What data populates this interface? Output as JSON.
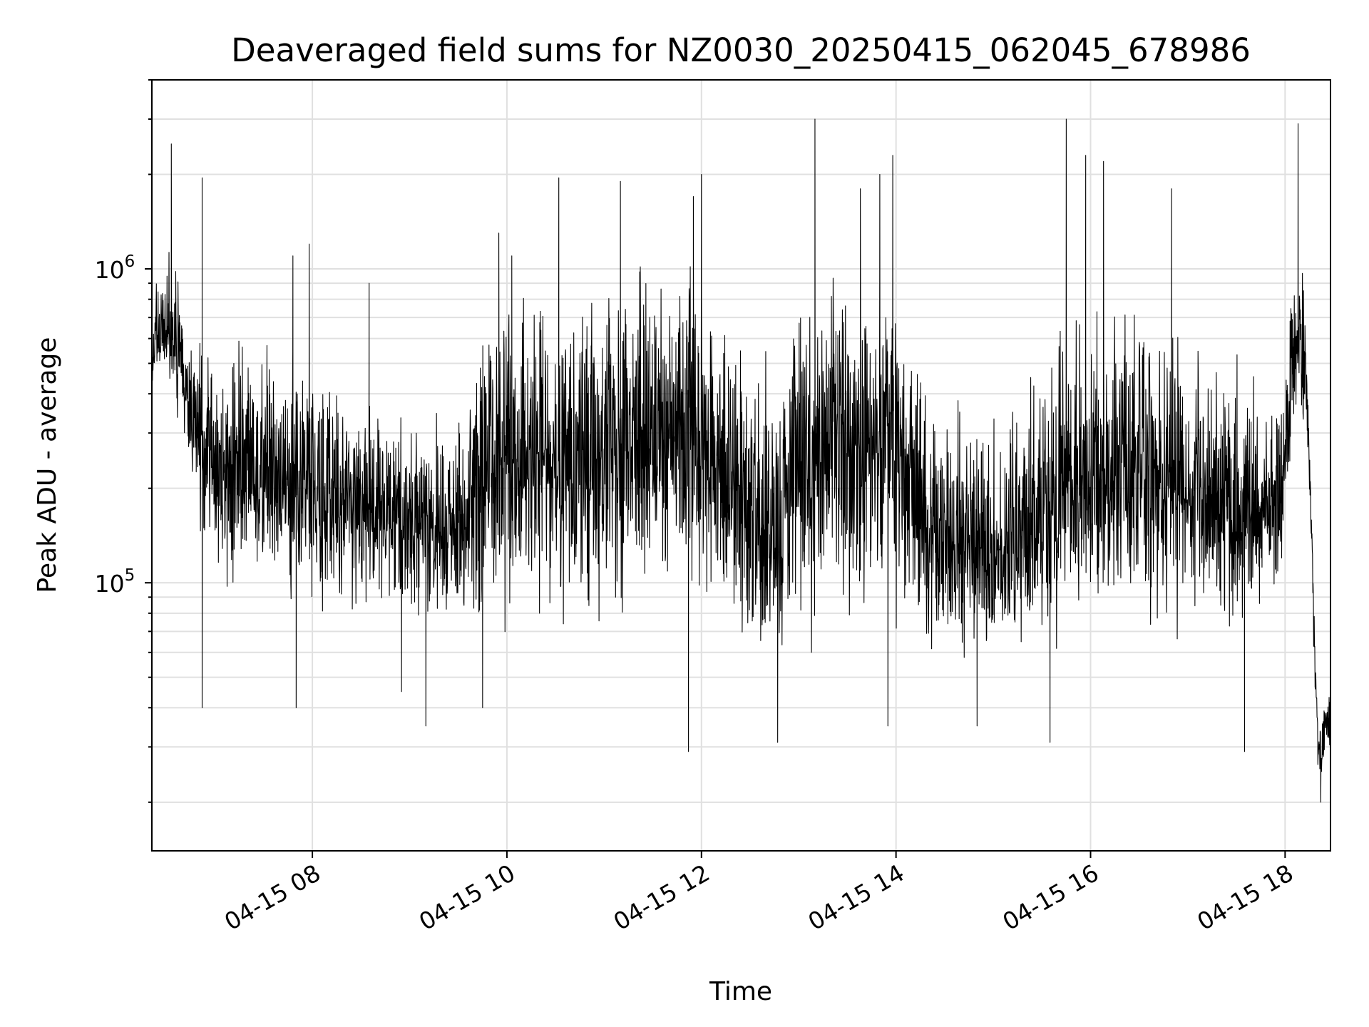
{
  "chart_data": {
    "type": "line",
    "title": "Deaveraged field sums for NZ0030_20250415_062045_678986",
    "xlabel": "Time",
    "ylabel": "Peak ADU - average",
    "y_scale": "log",
    "ylim": [
      14000,
      4000000
    ],
    "xlim": [
      "2025-04-15 06:21",
      "2025-04-15 18:28"
    ],
    "grid": true,
    "line_color": "#000000",
    "grid_color": "#e0e0e0",
    "x_ticks": [
      {
        "x": "2025-04-15 08:00",
        "label": "04-15 08"
      },
      {
        "x": "2025-04-15 10:00",
        "label": "04-15 10"
      },
      {
        "x": "2025-04-15 12:00",
        "label": "04-15 12"
      },
      {
        "x": "2025-04-15 14:00",
        "label": "04-15 14"
      },
      {
        "x": "2025-04-15 16:00",
        "label": "04-15 16"
      },
      {
        "x": "2025-04-15 18:00",
        "label": "04-15 18"
      }
    ],
    "y_ticks": [
      {
        "value": 100000,
        "base": "10",
        "exp": "5"
      },
      {
        "value": 1000000,
        "base": "10",
        "exp": "6"
      }
    ],
    "envelope": [
      {
        "x": "2025-04-15 06:21",
        "low": 420000,
        "mid": 550000,
        "high": 900000
      },
      {
        "x": "2025-04-15 06:35",
        "low": 400000,
        "mid": 620000,
        "high": 1150000
      },
      {
        "x": "2025-04-15 06:45",
        "low": 200000,
        "mid": 380000,
        "high": 600000
      },
      {
        "x": "2025-04-15 07:00",
        "low": 100000,
        "mid": 210000,
        "high": 550000
      },
      {
        "x": "2025-04-15 07:30",
        "low": 95000,
        "mid": 230000,
        "high": 620000
      },
      {
        "x": "2025-04-15 08:00",
        "low": 85000,
        "mid": 200000,
        "high": 450000
      },
      {
        "x": "2025-04-15 08:30",
        "low": 80000,
        "mid": 180000,
        "high": 400000
      },
      {
        "x": "2025-04-15 09:00",
        "low": 75000,
        "mid": 155000,
        "high": 330000
      },
      {
        "x": "2025-04-15 09:30",
        "low": 70000,
        "mid": 150000,
        "high": 380000
      },
      {
        "x": "2025-04-15 10:00",
        "low": 75000,
        "mid": 250000,
        "high": 900000
      },
      {
        "x": "2025-04-15 10:30",
        "low": 70000,
        "mid": 250000,
        "high": 800000
      },
      {
        "x": "2025-04-15 11:00",
        "low": 70000,
        "mid": 240000,
        "high": 900000
      },
      {
        "x": "2025-04-15 11:30",
        "low": 85000,
        "mid": 280000,
        "high": 950000
      },
      {
        "x": "2025-04-15 11:50",
        "low": 100000,
        "mid": 350000,
        "high": 1000000
      },
      {
        "x": "2025-04-15 12:15",
        "low": 75000,
        "mid": 200000,
        "high": 700000
      },
      {
        "x": "2025-04-15 12:45",
        "low": 50000,
        "mid": 130000,
        "high": 450000
      },
      {
        "x": "2025-04-15 13:00",
        "low": 70000,
        "mid": 220000,
        "high": 800000
      },
      {
        "x": "2025-04-15 13:30",
        "low": 80000,
        "mid": 280000,
        "high": 900000
      },
      {
        "x": "2025-04-15 14:00",
        "low": 90000,
        "mid": 330000,
        "high": 900000
      },
      {
        "x": "2025-04-15 14:20",
        "low": 60000,
        "mid": 140000,
        "high": 350000
      },
      {
        "x": "2025-04-15 15:00",
        "low": 60000,
        "mid": 130000,
        "high": 350000
      },
      {
        "x": "2025-04-15 15:30",
        "low": 65000,
        "mid": 150000,
        "high": 400000
      },
      {
        "x": "2025-04-15 15:50",
        "low": 80000,
        "mid": 230000,
        "high": 900000
      },
      {
        "x": "2025-04-15 16:30",
        "low": 80000,
        "mid": 220000,
        "high": 700000
      },
      {
        "x": "2025-04-15 17:00",
        "low": 80000,
        "mid": 210000,
        "high": 650000
      },
      {
        "x": "2025-04-15 17:30",
        "low": 75000,
        "mid": 170000,
        "high": 450000
      },
      {
        "x": "2025-04-15 17:58",
        "low": 90000,
        "mid": 180000,
        "high": 350000
      },
      {
        "x": "2025-04-15 18:05",
        "low": 300000,
        "mid": 550000,
        "high": 1300000
      },
      {
        "x": "2025-04-15 18:12",
        "low": 300000,
        "mid": 500000,
        "high": 1000000
      },
      {
        "x": "2025-04-15 18:15",
        "low": 200000,
        "mid": 250000,
        "high": 300000
      },
      {
        "x": "2025-04-15 18:20",
        "low": 22000,
        "mid": 30000,
        "high": 40000
      },
      {
        "x": "2025-04-15 18:28",
        "low": 28000,
        "mid": 38000,
        "high": 45000
      }
    ],
    "spikes": [
      {
        "x": "2025-04-15 06:33",
        "y": 2500000
      },
      {
        "x": "2025-04-15 06:52",
        "y": 1950000
      },
      {
        "x": "2025-04-15 06:52",
        "y": 40000
      },
      {
        "x": "2025-04-15 07:48",
        "y": 1100000
      },
      {
        "x": "2025-04-15 07:50",
        "y": 40000
      },
      {
        "x": "2025-04-15 07:58",
        "y": 1200000
      },
      {
        "x": "2025-04-15 08:35",
        "y": 900000
      },
      {
        "x": "2025-04-15 08:55",
        "y": 45000
      },
      {
        "x": "2025-04-15 09:10",
        "y": 35000
      },
      {
        "x": "2025-04-15 09:45",
        "y": 40000
      },
      {
        "x": "2025-04-15 09:55",
        "y": 1300000
      },
      {
        "x": "2025-04-15 10:03",
        "y": 1100000
      },
      {
        "x": "2025-04-15 10:32",
        "y": 1950000
      },
      {
        "x": "2025-04-15 11:10",
        "y": 1900000
      },
      {
        "x": "2025-04-15 11:55",
        "y": 1700000
      },
      {
        "x": "2025-04-15 11:52",
        "y": 29000
      },
      {
        "x": "2025-04-15 12:00",
        "y": 2000000
      },
      {
        "x": "2025-04-15 12:47",
        "y": 31000
      },
      {
        "x": "2025-04-15 13:10",
        "y": 3000000
      },
      {
        "x": "2025-04-15 13:38",
        "y": 1800000
      },
      {
        "x": "2025-04-15 13:50",
        "y": 2000000
      },
      {
        "x": "2025-04-15 13:55",
        "y": 35000
      },
      {
        "x": "2025-04-15 13:58",
        "y": 2300000
      },
      {
        "x": "2025-04-15 14:50",
        "y": 35000
      },
      {
        "x": "2025-04-15 15:35",
        "y": 31000
      },
      {
        "x": "2025-04-15 15:45",
        "y": 3000000
      },
      {
        "x": "2025-04-15 15:57",
        "y": 2300000
      },
      {
        "x": "2025-04-15 16:08",
        "y": 2200000
      },
      {
        "x": "2025-04-15 16:50",
        "y": 1800000
      },
      {
        "x": "2025-04-15 17:35",
        "y": 29000
      },
      {
        "x": "2025-04-15 18:08",
        "y": 2900000
      },
      {
        "x": "2025-04-15 18:22",
        "y": 20000
      }
    ]
  }
}
